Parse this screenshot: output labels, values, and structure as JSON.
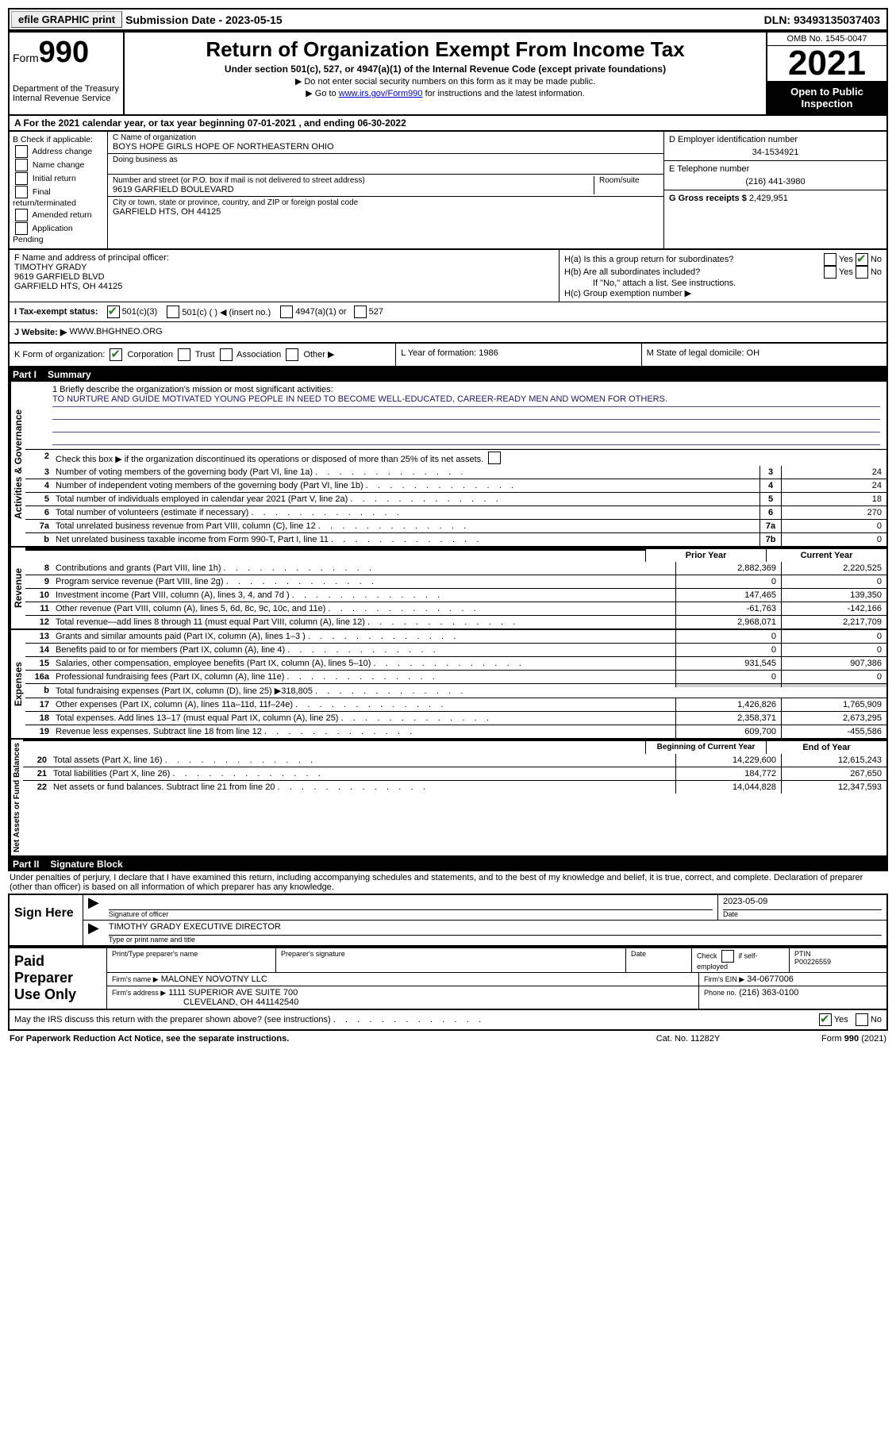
{
  "top": {
    "efile": "efile GRAPHIC print",
    "submission_label": "Submission Date - 2023-05-15",
    "dln_label": "DLN: 93493135037403"
  },
  "header": {
    "form_word": "Form",
    "form_num": "990",
    "dept": "Department of the Treasury",
    "dept2": "Internal Revenue Service",
    "title": "Return of Organization Exempt From Income Tax",
    "sub": "Under section 501(c), 527, or 4947(a)(1) of the Internal Revenue Code (except private foundations)",
    "note1": "▶ Do not enter social security numbers on this form as it may be made public.",
    "note2_pre": "▶ Go to ",
    "note2_link": "www.irs.gov/Form990",
    "note2_post": " for instructions and the latest information.",
    "omb": "OMB No. 1545-0047",
    "year": "2021",
    "open": "Open to Public Inspection"
  },
  "section_a": "A  For the 2021 calendar year, or tax year beginning 07-01-2021    , and ending 06-30-2022",
  "col_b": {
    "head": "B Check if applicable:",
    "items": [
      "Address change",
      "Name change",
      "Initial return",
      "Final return/terminated",
      "Amended return",
      "Application Pending"
    ]
  },
  "col_c": {
    "name_label": "C Name of organization",
    "name": "BOYS HOPE GIRLS HOPE OF NORTHEASTERN OHIO",
    "dba_label": "Doing business as",
    "addr_label": "Number and street (or P.O. box if mail is not delivered to street address)",
    "room_label": "Room/suite",
    "addr": "9619 GARFIELD BOULEVARD",
    "city_label": "City or town, state or province, country, and ZIP or foreign postal code",
    "city": "GARFIELD HTS, OH  44125"
  },
  "col_d": {
    "d_label": "D Employer identification number",
    "d_val": "34-1534921",
    "e_label": "E Telephone number",
    "e_val": "(216) 441-3980",
    "g_label": "G Gross receipts $",
    "g_val": "2,429,951"
  },
  "row_f": {
    "label": "F Name and address of principal officer:",
    "name": "TIMOTHY GRADY",
    "addr": "9619 GARFIELD BLVD",
    "city": "GARFIELD HTS, OH  44125"
  },
  "row_h": {
    "ha": "H(a)  Is this a group return for subordinates?",
    "hb": "H(b)  Are all subordinates included?",
    "hb_note": "If \"No,\" attach a list. See instructions.",
    "hc": "H(c)  Group exemption number ▶",
    "yes": "Yes",
    "no": "No"
  },
  "status": {
    "label": "I  Tax-exempt status:",
    "c3": "501(c)(3)",
    "c_other": "501(c) (  ) ◀ (insert no.)",
    "a1": "4947(a)(1) or",
    "s527": "527"
  },
  "website": {
    "label": "J  Website: ▶",
    "val": "WWW.BHGHNEO.ORG"
  },
  "row_k": {
    "k": "K Form of organization:",
    "corp": "Corporation",
    "trust": "Trust",
    "assoc": "Association",
    "other": "Other ▶",
    "l": "L Year of formation: 1986",
    "m": "M State of legal domicile: OH"
  },
  "parts": {
    "p1": "Part I",
    "p1t": "Summary",
    "p2": "Part II",
    "p2t": "Signature Block"
  },
  "mission": {
    "label": "1   Briefly describe the organization's mission or most significant activities:",
    "text": "TO NURTURE AND GUIDE MOTIVATED YOUNG PEOPLE IN NEED TO BECOME WELL-EDUCATED, CAREER-READY MEN AND WOMEN FOR OTHERS."
  },
  "line2": "Check this box ▶        if the organization discontinued its operations or disposed of more than 25% of its net assets.",
  "vlabels": {
    "act": "Activities & Governance",
    "rev": "Revenue",
    "exp": "Expenses",
    "net": "Net Assets or Fund Balances"
  },
  "lines_act": [
    {
      "n": "3",
      "d": "Number of voting members of the governing body (Part VI, line 1a)",
      "box": "3",
      "v": "24"
    },
    {
      "n": "4",
      "d": "Number of independent voting members of the governing body (Part VI, line 1b)",
      "box": "4",
      "v": "24"
    },
    {
      "n": "5",
      "d": "Total number of individuals employed in calendar year 2021 (Part V, line 2a)",
      "box": "5",
      "v": "18"
    },
    {
      "n": "6",
      "d": "Total number of volunteers (estimate if necessary)",
      "box": "6",
      "v": "270"
    },
    {
      "n": "7a",
      "d": "Total unrelated business revenue from Part VIII, column (C), line 12",
      "box": "7a",
      "v": "0"
    },
    {
      "n": "b",
      "d": "Net unrelated business taxable income from Form 990-T, Part I, line 11",
      "box": "7b",
      "v": "0"
    }
  ],
  "col_head": {
    "prior": "Prior Year",
    "current": "Current Year",
    "boc": "Beginning of Current Year",
    "eoy": "End of Year"
  },
  "lines_rev": [
    {
      "n": "8",
      "d": "Contributions and grants (Part VIII, line 1h)",
      "p": "2,882,369",
      "c": "2,220,525"
    },
    {
      "n": "9",
      "d": "Program service revenue (Part VIII, line 2g)",
      "p": "0",
      "c": "0"
    },
    {
      "n": "10",
      "d": "Investment income (Part VIII, column (A), lines 3, 4, and 7d )",
      "p": "147,465",
      "c": "139,350"
    },
    {
      "n": "11",
      "d": "Other revenue (Part VIII, column (A), lines 5, 6d, 8c, 9c, 10c, and 11e)",
      "p": "-61,763",
      "c": "-142,166"
    },
    {
      "n": "12",
      "d": "Total revenue—add lines 8 through 11 (must equal Part VIII, column (A), line 12)",
      "p": "2,968,071",
      "c": "2,217,709"
    }
  ],
  "lines_exp": [
    {
      "n": "13",
      "d": "Grants and similar amounts paid (Part IX, column (A), lines 1–3 )",
      "p": "0",
      "c": "0"
    },
    {
      "n": "14",
      "d": "Benefits paid to or for members (Part IX, column (A), line 4)",
      "p": "0",
      "c": "0"
    },
    {
      "n": "15",
      "d": "Salaries, other compensation, employee benefits (Part IX, column (A), lines 5–10)",
      "p": "931,545",
      "c": "907,386"
    },
    {
      "n": "16a",
      "d": "Professional fundraising fees (Part IX, column (A), line 11e)",
      "p": "0",
      "c": "0"
    },
    {
      "n": "b",
      "d": "Total fundraising expenses (Part IX, column (D), line 25) ▶318,805",
      "p": "",
      "c": "",
      "shade": true
    },
    {
      "n": "17",
      "d": "Other expenses (Part IX, column (A), lines 11a–11d, 11f–24e)",
      "p": "1,426,826",
      "c": "1,765,909"
    },
    {
      "n": "18",
      "d": "Total expenses. Add lines 13–17 (must equal Part IX, column (A), line 25)",
      "p": "2,358,371",
      "c": "2,673,295"
    },
    {
      "n": "19",
      "d": "Revenue less expenses. Subtract line 18 from line 12",
      "p": "609,700",
      "c": "-455,586"
    }
  ],
  "lines_net": [
    {
      "n": "20",
      "d": "Total assets (Part X, line 16)",
      "p": "14,229,600",
      "c": "12,615,243"
    },
    {
      "n": "21",
      "d": "Total liabilities (Part X, line 26)",
      "p": "184,772",
      "c": "267,650"
    },
    {
      "n": "22",
      "d": "Net assets or fund balances. Subtract line 21 from line 20",
      "p": "14,044,828",
      "c": "12,347,593"
    }
  ],
  "penalties": "Under penalties of perjury, I declare that I have examined this return, including accompanying schedules and statements, and to the best of my knowledge and belief, it is true, correct, and complete. Declaration of preparer (other than officer) is based on all information of which preparer has any knowledge.",
  "sign": {
    "left": "Sign Here",
    "sig_label": "Signature of officer",
    "date_val": "2023-05-09",
    "date_label": "Date",
    "name": "TIMOTHY GRADY  EXECUTIVE DIRECTOR",
    "name_label": "Type or print name and title"
  },
  "prep": {
    "left": "Paid Preparer Use Only",
    "r1": {
      "c1": "Print/Type preparer's name",
      "c2": "Preparer's signature",
      "c3": "Date",
      "c4a": "Check",
      "c4b": "if self-employed",
      "c5l": "PTIN",
      "c5v": "P00226559"
    },
    "r2": {
      "c1": "Firm's name    ▶",
      "c1v": "MALONEY NOVOTNY LLC",
      "c2": "Firm's EIN ▶",
      "c2v": "34-0677006"
    },
    "r3": {
      "c1": "Firm's address ▶",
      "c1v": "1111 SUPERIOR AVE SUITE 700",
      "c1v2": "CLEVELAND, OH  441142540",
      "c2": "Phone no.",
      "c2v": "(216) 363-0100"
    }
  },
  "discuss": {
    "q": "May the IRS discuss this return with the preparer shown above? (see instructions)",
    "yes": "Yes",
    "no": "No"
  },
  "footer": {
    "left": "For Paperwork Reduction Act Notice, see the separate instructions.",
    "mid": "Cat. No. 11282Y",
    "right": "Form 990 (2021)"
  }
}
